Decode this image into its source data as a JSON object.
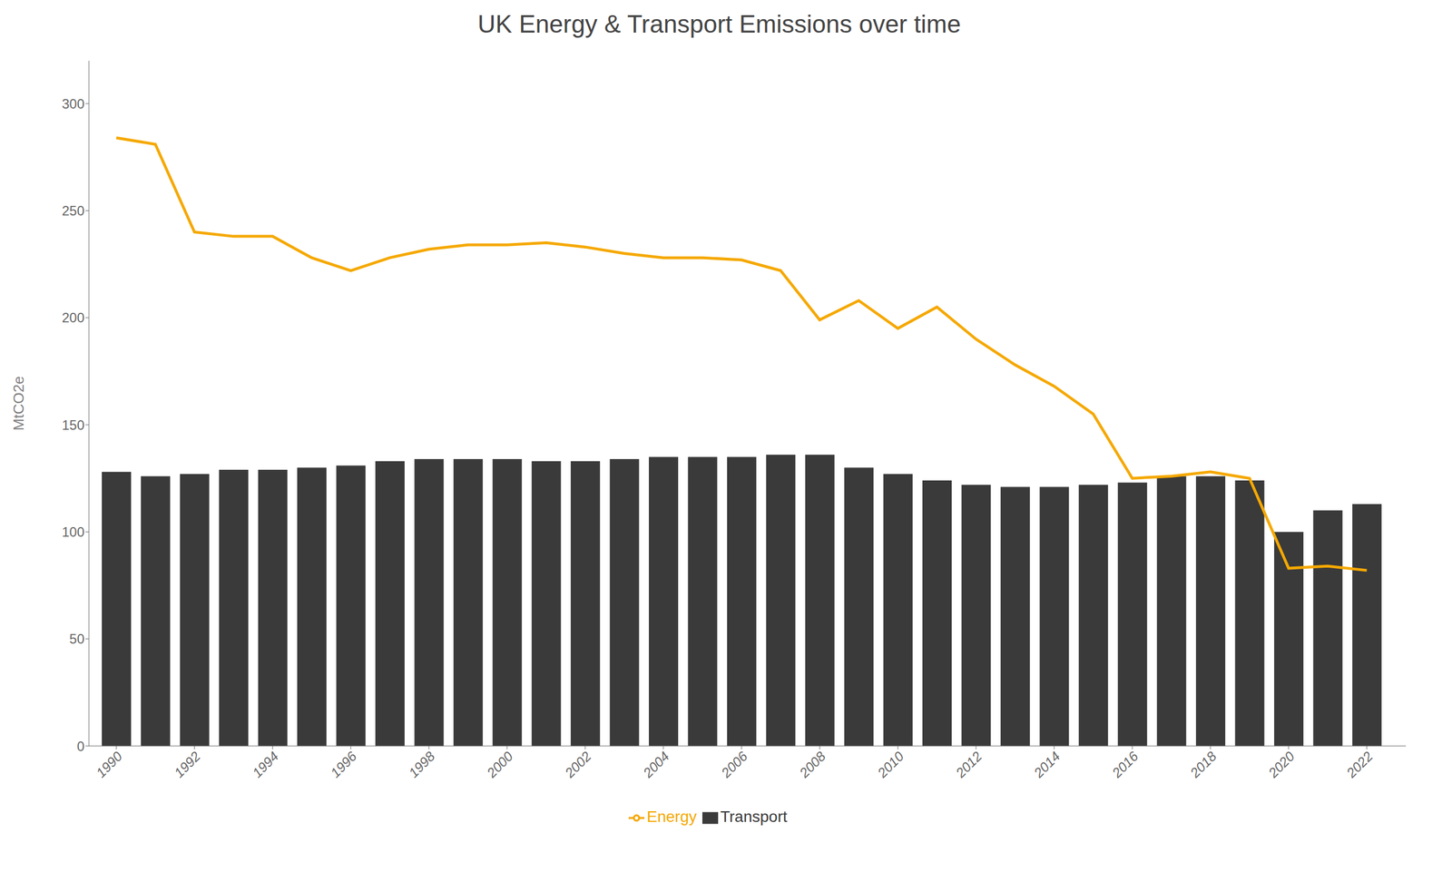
{
  "chart_data": {
    "type": "bar",
    "title": "UK Energy & Transport Emissions over time",
    "ylabel": "MtCO2e",
    "x": [
      1990,
      1991,
      1992,
      1993,
      1994,
      1995,
      1996,
      1997,
      1998,
      1999,
      2000,
      2001,
      2002,
      2003,
      2004,
      2005,
      2006,
      2007,
      2008,
      2009,
      2010,
      2011,
      2012,
      2013,
      2014,
      2015,
      2016,
      2017,
      2018,
      2019,
      2020,
      2021,
      2022
    ],
    "series": [
      {
        "name": "Transport",
        "type": "bar",
        "color": "#3a3a3a",
        "values": [
          128,
          126,
          127,
          129,
          129,
          130,
          131,
          133,
          134,
          134,
          134,
          133,
          133,
          134,
          135,
          135,
          135,
          136,
          136,
          130,
          127,
          124,
          122,
          121,
          121,
          122,
          123,
          126,
          126,
          124,
          100,
          110,
          113
        ]
      },
      {
        "name": "Energy",
        "type": "line",
        "color": "#F5A800",
        "values": [
          284,
          281,
          240,
          238,
          238,
          228,
          222,
          228,
          232,
          234,
          234,
          235,
          233,
          230,
          228,
          228,
          227,
          222,
          199,
          208,
          195,
          205,
          190,
          178,
          168,
          155,
          125,
          126,
          128,
          125,
          83,
          84,
          82
        ]
      }
    ],
    "xlim": [
      1989.3,
      2023.0
    ],
    "xticks": [
      1990,
      1992,
      1994,
      1996,
      1998,
      2000,
      2002,
      2004,
      2006,
      2008,
      2010,
      2012,
      2014,
      2016,
      2018,
      2020,
      2022
    ],
    "ylim": [
      0,
      320
    ],
    "yticks": [
      0,
      50,
      100,
      150,
      200,
      250,
      300
    ],
    "grid": false,
    "legend": "bottom"
  }
}
